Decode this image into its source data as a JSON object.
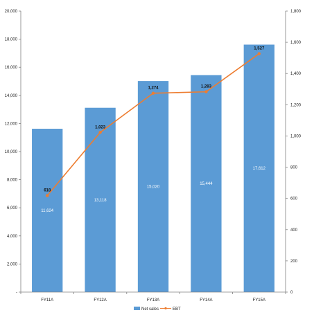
{
  "chart_data": {
    "type": "bar",
    "categories": [
      "FY11A",
      "FY12A",
      "FY13A",
      "FY14A",
      "FY15A"
    ],
    "series": [
      {
        "name": "Net sales",
        "kind": "bar",
        "axis": "left",
        "color": "#5B9BD5",
        "values": [
          11624,
          13118,
          15020,
          15444,
          17612
        ],
        "labels": [
          "11,624",
          "13,118",
          "15,020",
          "15,444",
          "17,612"
        ]
      },
      {
        "name": "EBT",
        "kind": "line",
        "axis": "right",
        "color": "#ED7D31",
        "values": [
          618,
          1023,
          1274,
          1283,
          1527
        ],
        "labels": [
          "618",
          "1,023",
          "1,274",
          "1,283",
          "1,527"
        ]
      }
    ],
    "y_left": {
      "min": 0,
      "max": 20000,
      "ticks": [
        "-",
        "2,000",
        "4,000",
        "6,000",
        "8,000",
        "10,000",
        "12,000",
        "14,000",
        "16,000",
        "18,000",
        "20,000"
      ]
    },
    "y_right": {
      "min": 0,
      "max": 1800,
      "ticks": [
        "0",
        "200",
        "400",
        "600",
        "800",
        "1,000",
        "1,200",
        "1,400",
        "1,600",
        "1,800"
      ]
    },
    "legend": "bottom",
    "grid": false
  }
}
